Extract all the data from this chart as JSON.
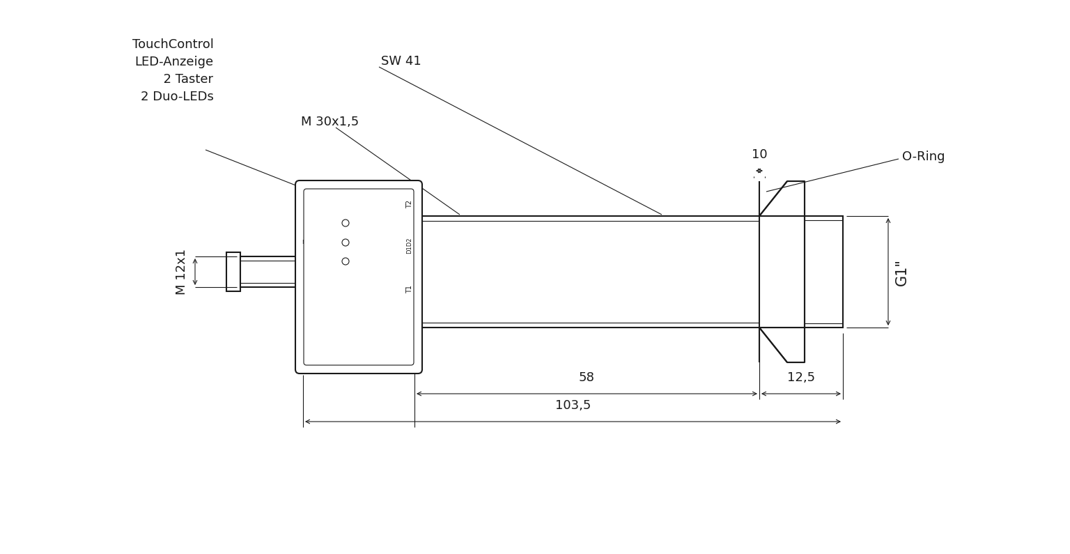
{
  "bg_color": "#ffffff",
  "line_color": "#1a1a1a",
  "lw_main": 1.5,
  "lw_thin": 0.8,
  "lw_dim": 0.8,
  "annotations": {
    "touch_control": "TouchControl\nLED-Anzeige\n  2 Taster\n2 Duo-LEDs",
    "sw41": "SW 41",
    "m30": "M 30x1,5",
    "m12": "M 12x1",
    "oring": "O-Ring",
    "g1": "G1\"",
    "dim_10": "10",
    "dim_58": "58",
    "dim_125": "12,5",
    "dim_1035": "103,5"
  },
  "font_size": 13,
  "font_size_small": 7
}
